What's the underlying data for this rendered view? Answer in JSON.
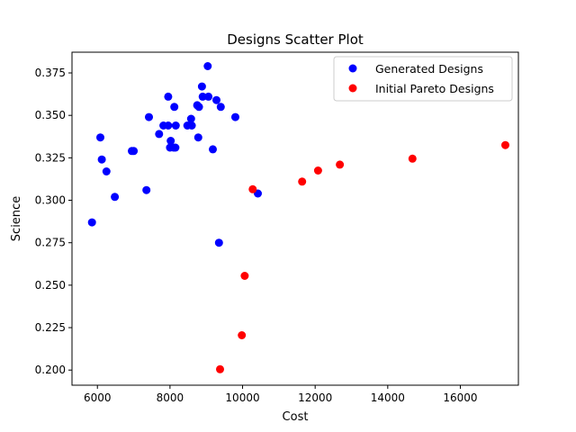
{
  "chart_data": {
    "type": "scatter",
    "title": "Designs Scatter Plot",
    "xlabel": "Cost",
    "ylabel": "Science",
    "xlim": [
      5300,
      17600
    ],
    "ylim": [
      0.1911,
      0.3872
    ],
    "x_ticks": [
      6000,
      8000,
      10000,
      12000,
      14000,
      16000
    ],
    "x_tick_labels": [
      "6000",
      "8000",
      "10000",
      "12000",
      "14000",
      "16000"
    ],
    "y_ticks": [
      0.2,
      0.225,
      0.25,
      0.275,
      0.3,
      0.325,
      0.35,
      0.375
    ],
    "y_tick_labels": [
      "0.200",
      "0.225",
      "0.250",
      "0.275",
      "0.300",
      "0.325",
      "0.350",
      "0.375"
    ],
    "grid": false,
    "legend_position": "top-right",
    "series": [
      {
        "name": "Generated Designs",
        "color": "#0000ff",
        "points": [
          [
            5850,
            0.287
          ],
          [
            6080,
            0.337
          ],
          [
            6120,
            0.324
          ],
          [
            6250,
            0.317
          ],
          [
            6480,
            0.302
          ],
          [
            6950,
            0.329
          ],
          [
            7000,
            0.329
          ],
          [
            7350,
            0.306
          ],
          [
            7420,
            0.349
          ],
          [
            7700,
            0.339
          ],
          [
            7820,
            0.344
          ],
          [
            7950,
            0.344
          ],
          [
            7950,
            0.361
          ],
          [
            8000,
            0.331
          ],
          [
            8020,
            0.335
          ],
          [
            8100,
            0.331
          ],
          [
            8120,
            0.355
          ],
          [
            8150,
            0.331
          ],
          [
            8160,
            0.344
          ],
          [
            8480,
            0.344
          ],
          [
            8580,
            0.348
          ],
          [
            8600,
            0.344
          ],
          [
            8750,
            0.356
          ],
          [
            8780,
            0.337
          ],
          [
            8800,
            0.355
          ],
          [
            8880,
            0.367
          ],
          [
            8900,
            0.361
          ],
          [
            9040,
            0.379
          ],
          [
            9060,
            0.361
          ],
          [
            9180,
            0.33
          ],
          [
            9280,
            0.359
          ],
          [
            9350,
            0.275
          ],
          [
            9400,
            0.355
          ],
          [
            9800,
            0.349
          ],
          [
            10420,
            0.304
          ]
        ]
      },
      {
        "name": "Initial Pareto Designs",
        "color": "#ff0000",
        "points": [
          [
            9380,
            0.2005
          ],
          [
            9980,
            0.2205
          ],
          [
            10060,
            0.2555
          ],
          [
            10280,
            0.3065
          ],
          [
            11640,
            0.311
          ],
          [
            12080,
            0.3175
          ],
          [
            12680,
            0.321
          ],
          [
            14680,
            0.3245
          ],
          [
            17240,
            0.3325
          ]
        ]
      }
    ]
  }
}
